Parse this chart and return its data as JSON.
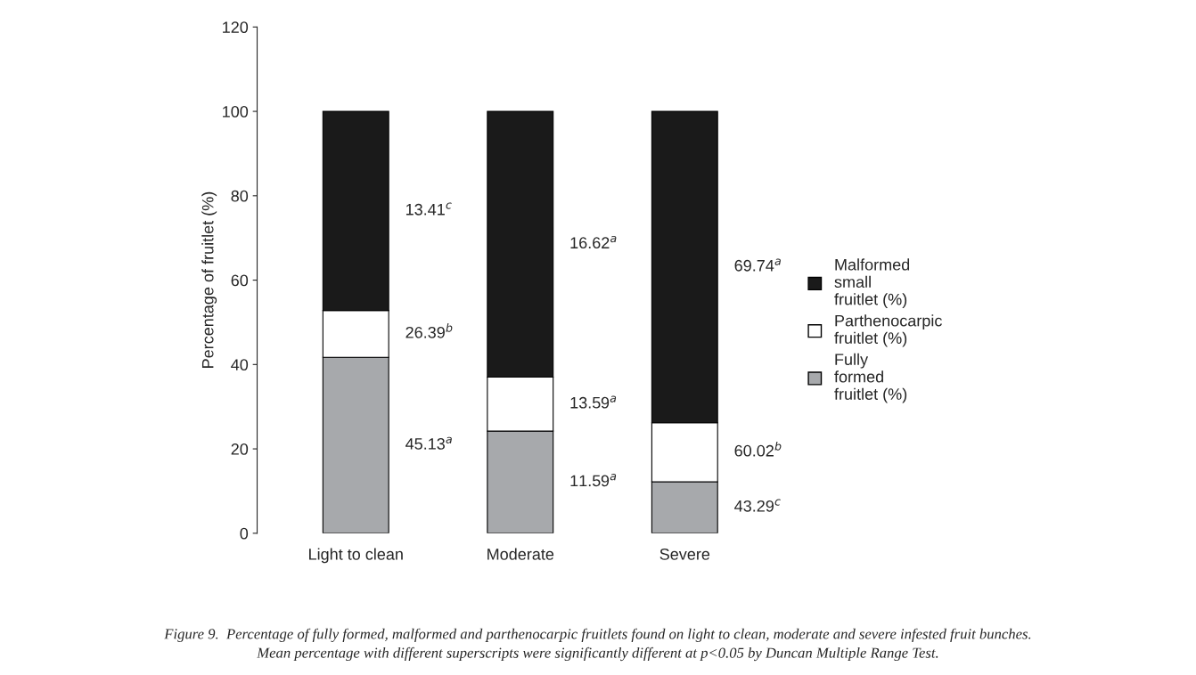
{
  "chart_data": {
    "type": "bar",
    "stacked": true,
    "categories": [
      "Light to clean",
      "Moderate",
      "Severe"
    ],
    "ylabel": "Percentage of fruitlet (%)",
    "ylim": [
      0,
      120
    ],
    "yticks": [
      0,
      20,
      40,
      60,
      80,
      100,
      120
    ],
    "series": [
      {
        "name": "Fully\nformed\nfruitlet (%)",
        "color": "#a7a9ac",
        "values": [
          41.7,
          24.2,
          12.2
        ]
      },
      {
        "name": "Parthenocarpic\nfruitlet (%)",
        "color": "#ffffff",
        "values": [
          11.1,
          12.8,
          14.0
        ]
      },
      {
        "name": "Malformed\nsmall\nfruitlet (%)",
        "color": "#1a1a1a",
        "values": [
          47.2,
          63.0,
          73.8
        ]
      }
    ],
    "legend": "right",
    "grid": false,
    "annotations": [
      "45.13$^{a}$",
      "26.39$^{b}$",
      "13.41$^{c}$",
      "11.59$^{a}$",
      "13.59$^{a}$",
      "16.62$^{a}$",
      "43.29$^{c}$",
      "60.02$^{b}$",
      "69.74$^{a}$",
      "Figure 9.  Percentage of fully formed, malformed and parthenocarpic fruitlets found on light to clean, moderate and severe infested fruit bunches.\nMean percentage with different superscripts were significantly different at p<0.05 by Duncan Multiple Range Test."
    ]
  }
}
